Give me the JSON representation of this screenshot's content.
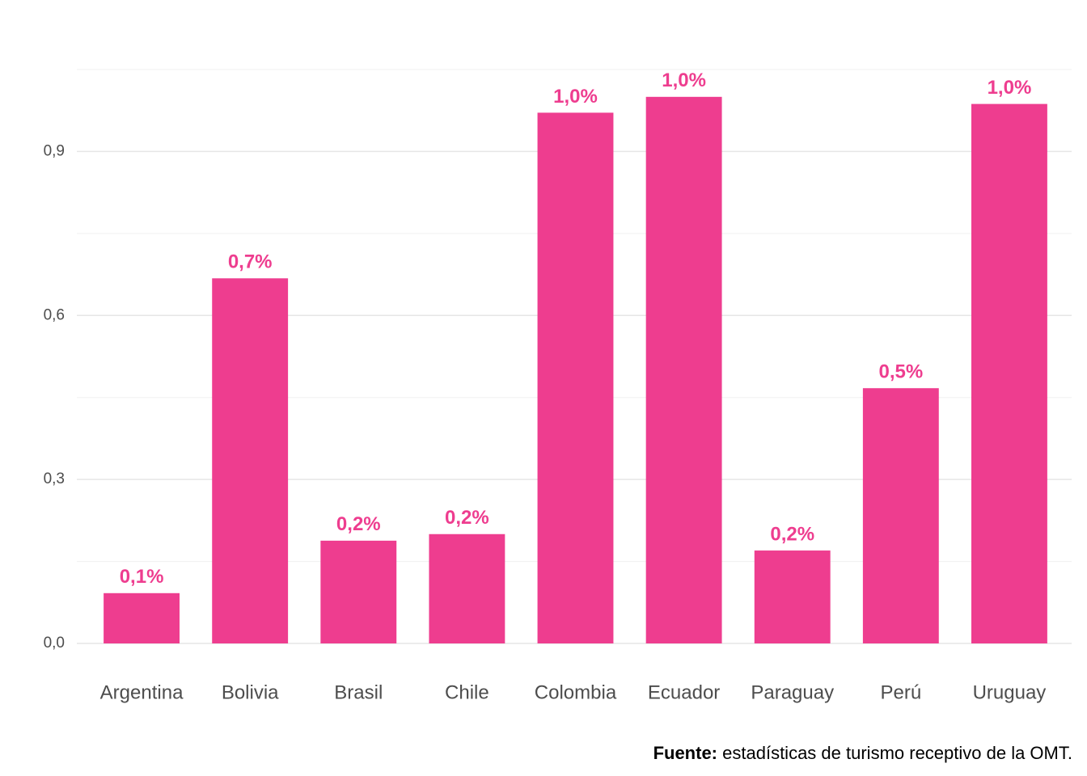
{
  "chart_data": {
    "type": "bar",
    "categories": [
      "Argentina",
      "Bolivia",
      "Brasil",
      "Chile",
      "Colombia",
      "Ecuador",
      "Paraguay",
      "Perú",
      "Uruguay"
    ],
    "values": [
      0.092,
      0.668,
      0.188,
      0.2,
      0.971,
      1.0,
      0.17,
      0.467,
      0.987
    ],
    "value_labels": [
      "0,1%",
      "0,7%",
      "0,2%",
      "0,2%",
      "1,0%",
      "1,0%",
      "0,2%",
      "0,5%",
      "1,0%"
    ],
    "color": "#ee3d8f",
    "ylim": [
      0,
      1.05
    ],
    "yticks": [
      {
        "value": 0,
        "label": "0,0"
      },
      {
        "value": 0.3,
        "label": "0,3"
      },
      {
        "value": 0.6,
        "label": "0,6"
      },
      {
        "value": 0.9,
        "label": "0,9"
      }
    ],
    "minor_yticks": [
      0.15,
      0.45,
      0.75,
      1.05
    ],
    "grid": true,
    "caption_label": "Fuente:",
    "caption_text": "estadísticas de turismo receptivo de la OMT."
  }
}
